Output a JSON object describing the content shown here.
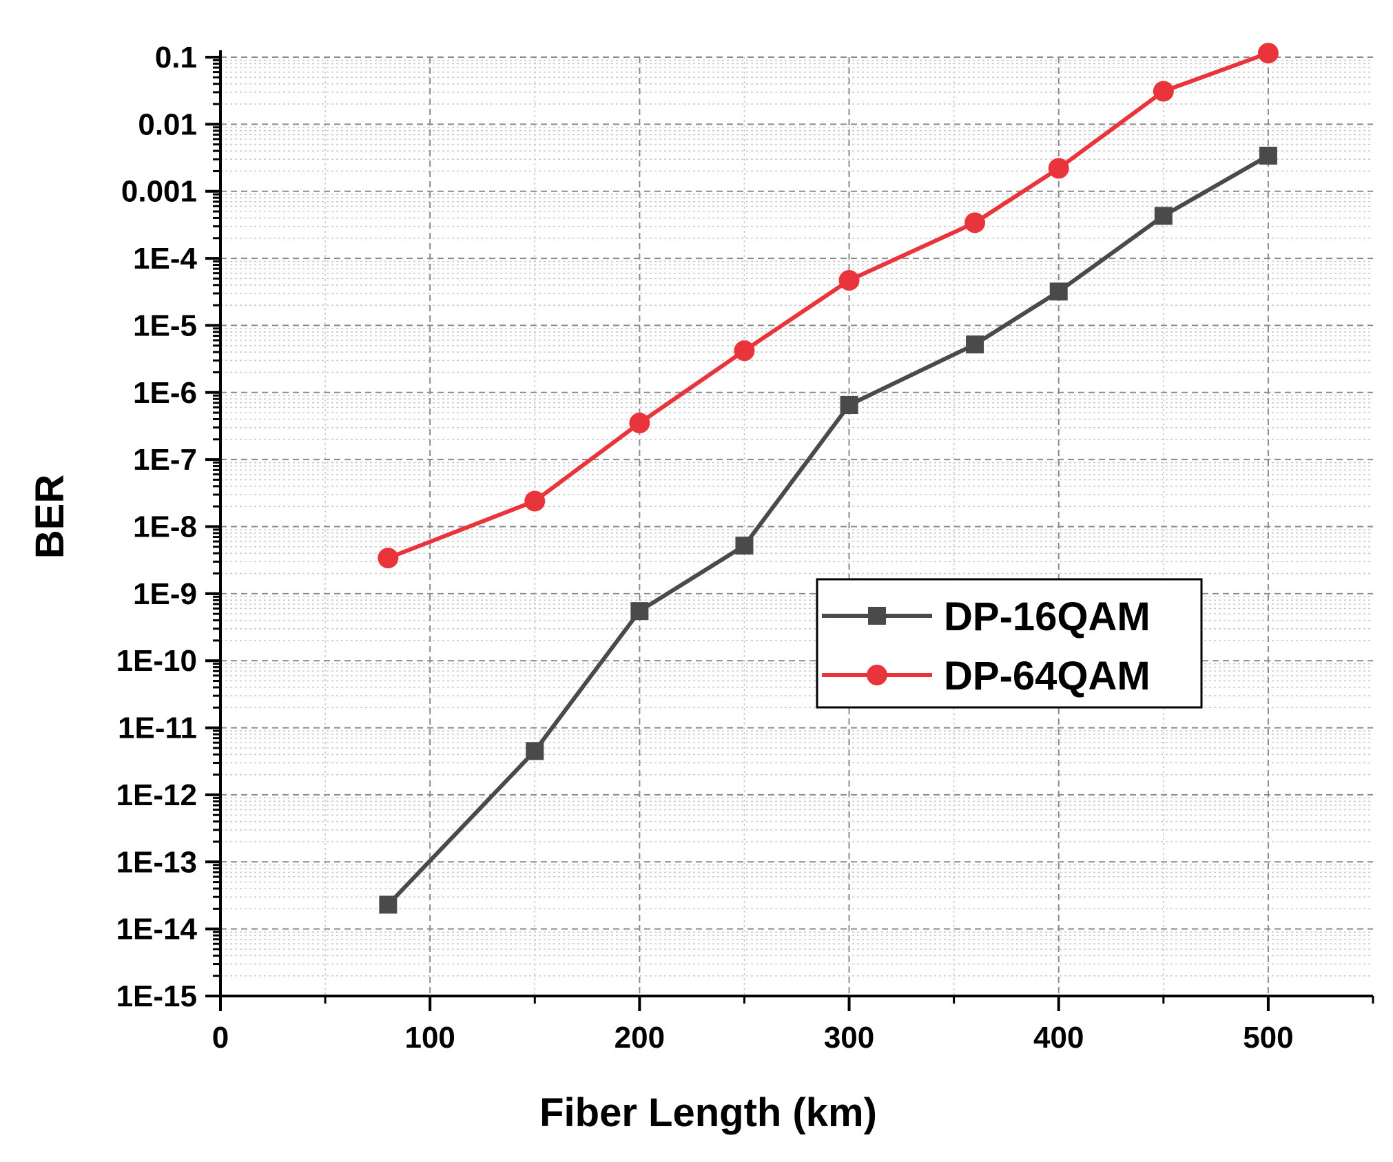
{
  "chart_data": {
    "type": "line",
    "title": "",
    "xlabel": "Fiber Length (km)",
    "ylabel": "BER",
    "xlim": [
      0,
      550
    ],
    "ylim_log10": [
      -15,
      -1
    ],
    "y_scale": "log",
    "grid": true,
    "legend_position": "center-right",
    "x_ticks": [
      0,
      100,
      200,
      300,
      400,
      500
    ],
    "x_tick_labels": [
      "0",
      "100",
      "200",
      "300",
      "400",
      "500"
    ],
    "y_ticks_log10": [
      -1,
      -2,
      -3,
      -4,
      -5,
      -6,
      -7,
      -8,
      -9,
      -10,
      -11,
      -12,
      -13,
      -14,
      -15
    ],
    "y_tick_labels": [
      "0.1",
      "0.01",
      "0.001",
      "1E-4",
      "1E-5",
      "1E-6",
      "1E-7",
      "1E-8",
      "1E-9",
      "1E-10",
      "1E-11",
      "1E-12",
      "1E-13",
      "1E-14",
      "1E-15"
    ],
    "series": [
      {
        "name": "DP-16QAM",
        "color": "#4a4a4a",
        "marker": "square",
        "x": [
          80,
          150,
          200,
          250,
          300,
          360,
          400,
          450,
          500
        ],
        "y": [
          2.3e-14,
          4.5e-12,
          5.5e-10,
          5.2e-09,
          6.5e-07,
          5.2e-06,
          3.2e-05,
          0.00043,
          0.0034
        ]
      },
      {
        "name": "DP-64QAM",
        "color": "#e8343a",
        "marker": "circle",
        "x": [
          80,
          150,
          200,
          250,
          300,
          360,
          400,
          450,
          500
        ],
        "y": [
          3.4e-09,
          2.4e-08,
          3.5e-07,
          4.2e-06,
          4.7e-05,
          0.00034,
          0.0022,
          0.031,
          0.115
        ]
      }
    ]
  }
}
